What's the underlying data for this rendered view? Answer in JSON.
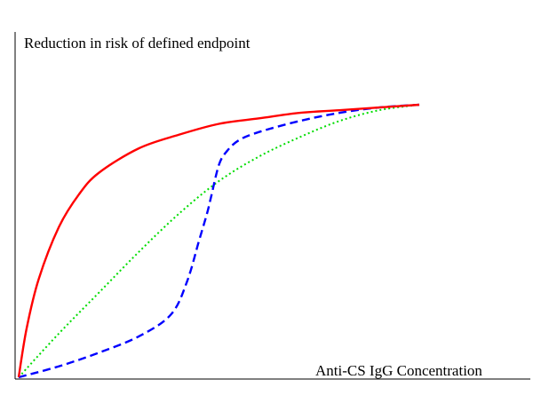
{
  "chart_data": {
    "type": "line",
    "title": "",
    "ylabel": "Reduction in risk of defined endpoint",
    "xlabel": "Anti-CS IgG Concentration",
    "xlim": [
      0,
      1
    ],
    "ylim": [
      0,
      1
    ],
    "grid": false,
    "ticks": false,
    "series": [
      {
        "style": "solid",
        "color": "#ff0000",
        "x": [
          0,
          0.02,
          0.05,
          0.1,
          0.15,
          0.2,
          0.3,
          0.4,
          0.5,
          0.6,
          0.7,
          0.8,
          0.9,
          1.0
        ],
        "y": [
          0,
          0.18,
          0.36,
          0.55,
          0.67,
          0.75,
          0.84,
          0.89,
          0.93,
          0.95,
          0.97,
          0.98,
          0.99,
          1.0
        ]
      },
      {
        "style": "dashed",
        "color": "#0000ff",
        "x": [
          0,
          0.1,
          0.2,
          0.3,
          0.38,
          0.42,
          0.45,
          0.47,
          0.48,
          0.5,
          0.52,
          0.55,
          0.6,
          0.7,
          0.8,
          0.9,
          1.0
        ],
        "y": [
          0,
          0.04,
          0.09,
          0.15,
          0.23,
          0.35,
          0.5,
          0.6,
          0.66,
          0.78,
          0.83,
          0.87,
          0.9,
          0.94,
          0.97,
          0.99,
          1.0
        ]
      },
      {
        "style": "dotted",
        "color": "#00dd00",
        "x": [
          0,
          0.1,
          0.2,
          0.3,
          0.4,
          0.5,
          0.6,
          0.7,
          0.8,
          0.9,
          1.0
        ],
        "y": [
          0,
          0.16,
          0.31,
          0.46,
          0.6,
          0.72,
          0.81,
          0.88,
          0.94,
          0.98,
          1.0
        ]
      }
    ]
  }
}
